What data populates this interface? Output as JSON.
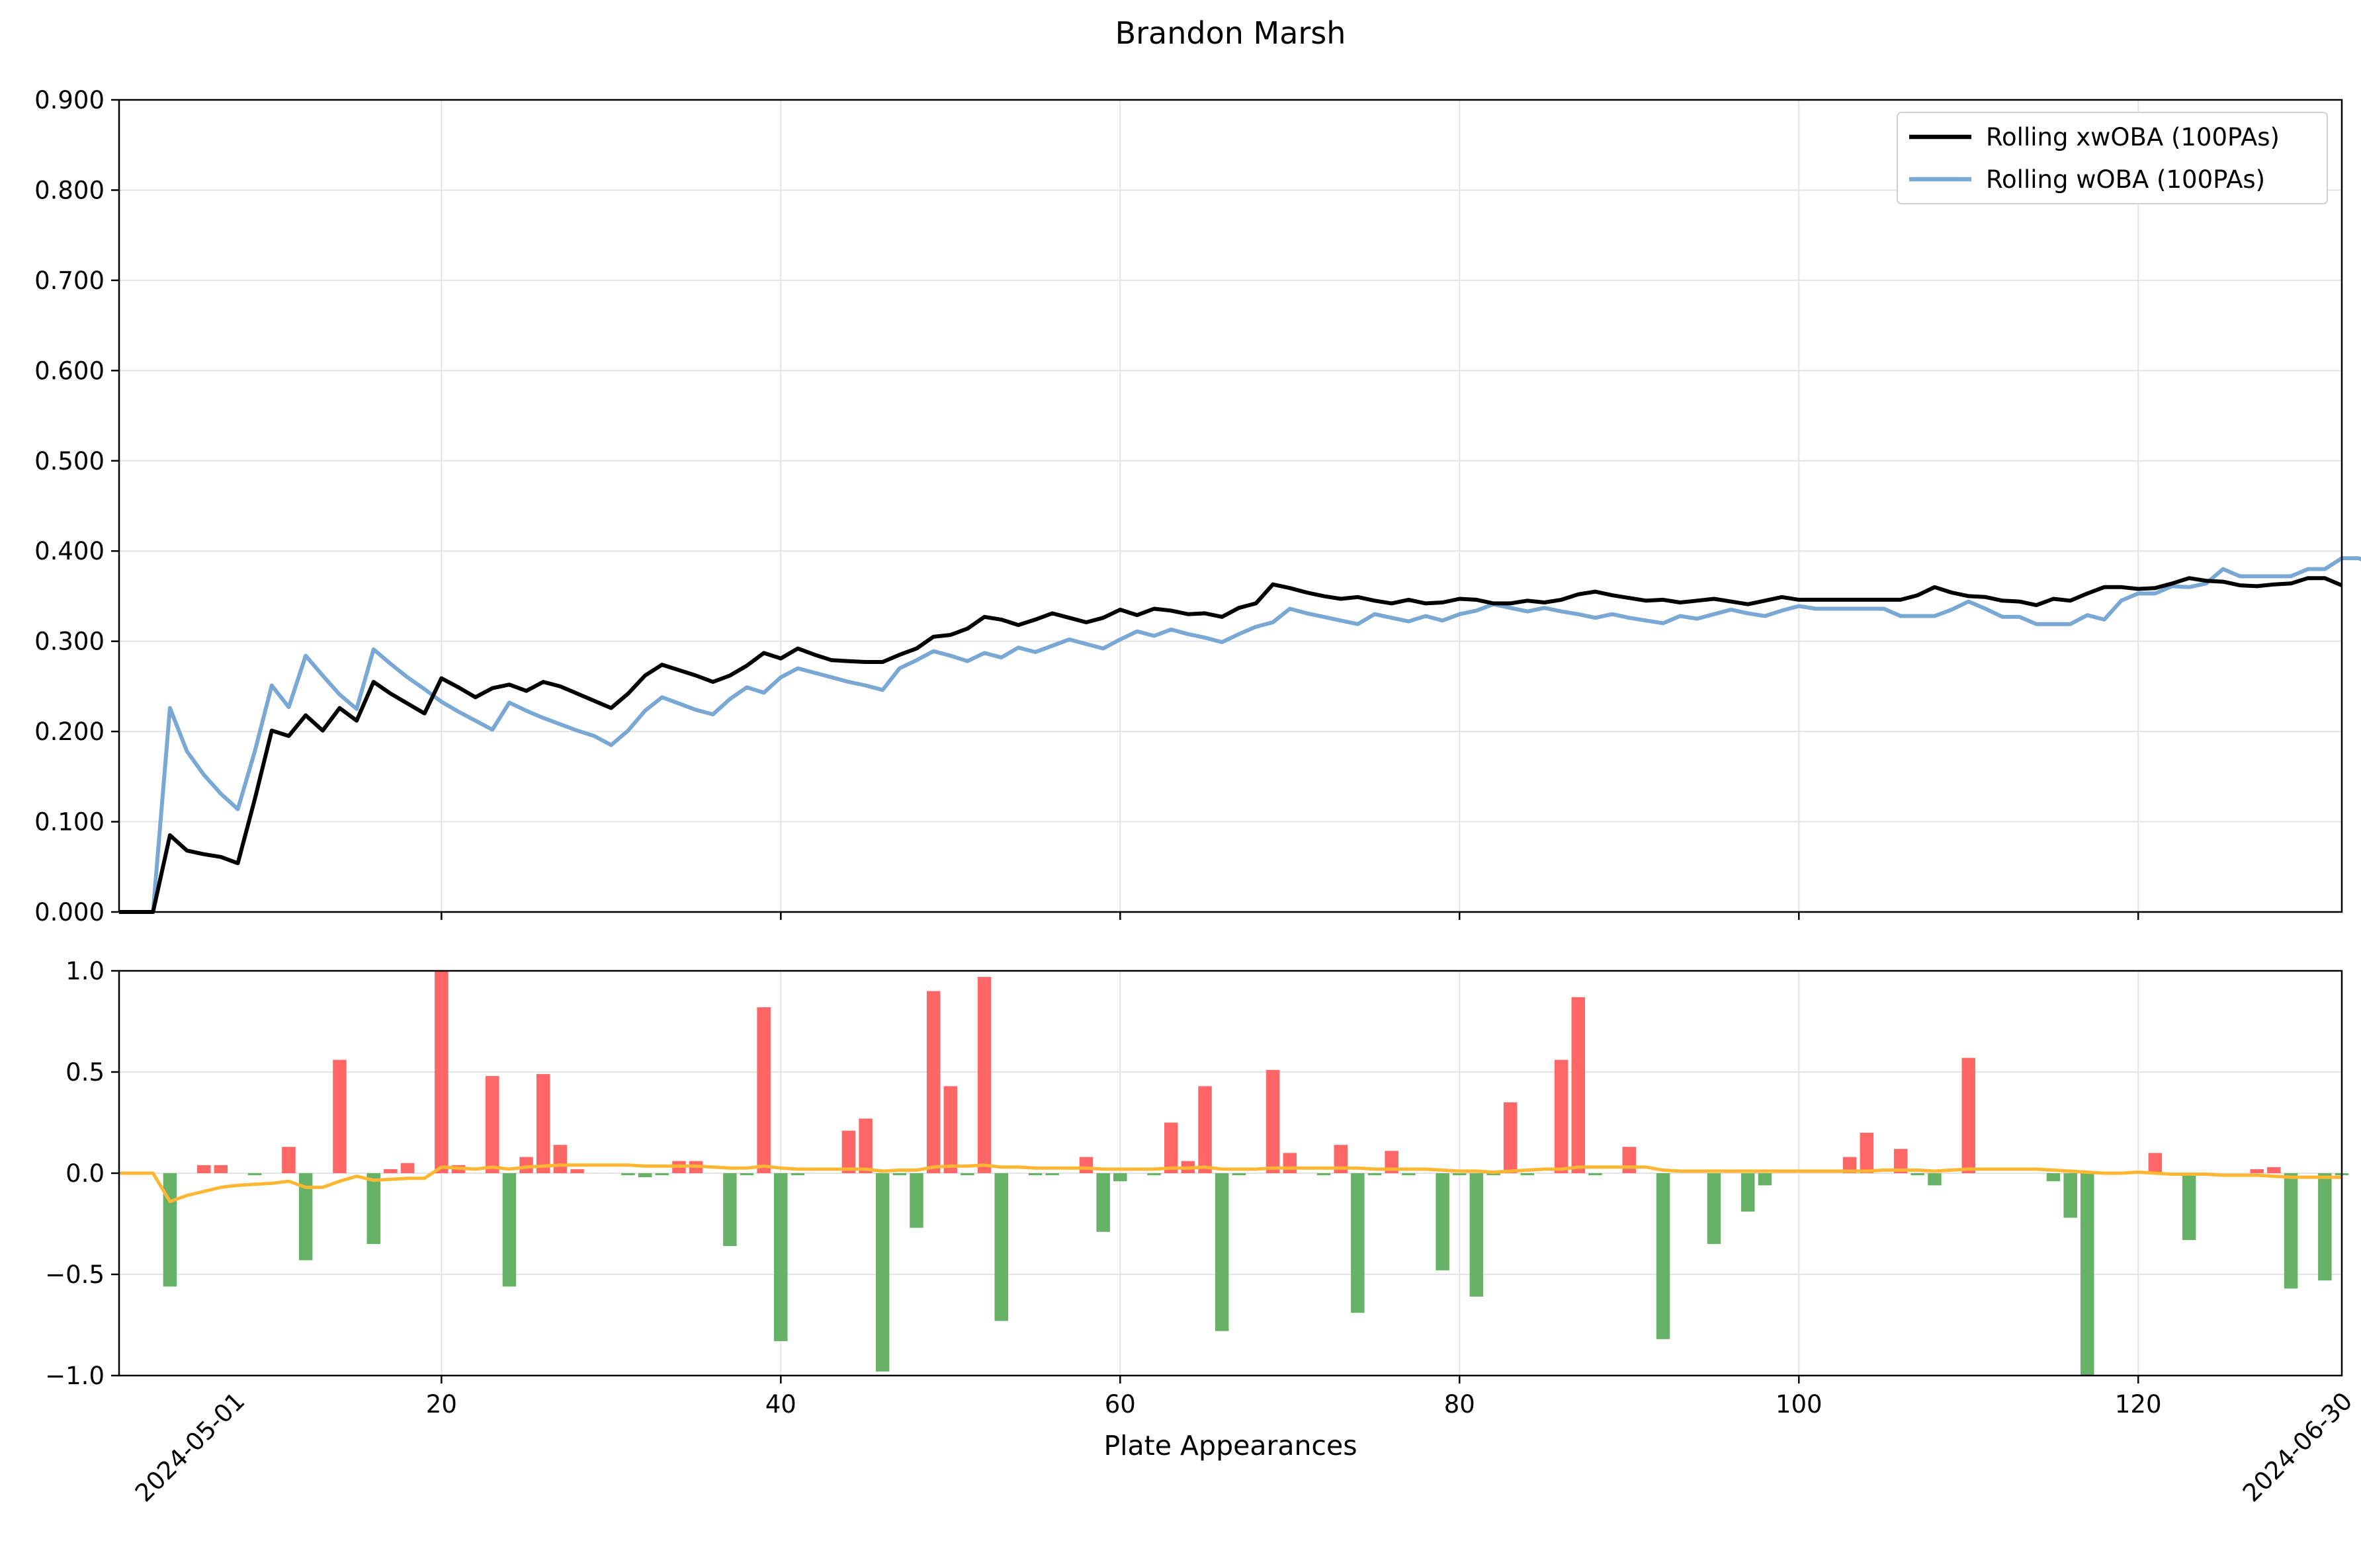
{
  "title": "Brandon Marsh",
  "colors": {
    "xwoba": "#000000",
    "woba": "#7aa8d4",
    "positive_bar": "#ff6666",
    "negative_bar": "#66b266",
    "diff_line": "#ffb733",
    "grid": "#e4e4e4"
  },
  "chart_data": [
    {
      "type": "line",
      "legend_position": "top-right",
      "grid": true,
      "xlim": [
        1,
        132
      ],
      "ylim": [
        0,
        0.9
      ],
      "yticks": [
        "0.000",
        "0.100",
        "0.200",
        "0.300",
        "0.400",
        "0.500",
        "0.600",
        "0.700",
        "0.800",
        "0.900"
      ],
      "x_start": 1,
      "series": [
        {
          "name": "Rolling xwOBA (100PAs)",
          "values": [
            0.0,
            0.0,
            0.0,
            0.085,
            0.068,
            0.064,
            0.061,
            0.054,
            0.125,
            0.201,
            0.195,
            0.218,
            0.201,
            0.226,
            0.212,
            0.255,
            0.242,
            0.231,
            0.22,
            0.259,
            0.249,
            0.238,
            0.248,
            0.252,
            0.245,
            0.255,
            0.25,
            0.242,
            0.234,
            0.226,
            0.242,
            0.262,
            0.274,
            0.268,
            0.262,
            0.255,
            0.262,
            0.273,
            0.287,
            0.281,
            0.292,
            0.285,
            0.279,
            0.278,
            0.277,
            0.277,
            0.285,
            0.292,
            0.305,
            0.307,
            0.314,
            0.327,
            0.324,
            0.318,
            0.324,
            0.331,
            0.326,
            0.321,
            0.326,
            0.335,
            0.329,
            0.336,
            0.334,
            0.33,
            0.331,
            0.327,
            0.337,
            0.342,
            0.363,
            0.359,
            0.354,
            0.35,
            0.347,
            0.349,
            0.345,
            0.342,
            0.346,
            0.342,
            0.343,
            0.347,
            0.346,
            0.342,
            0.342,
            0.345,
            0.343,
            0.346,
            0.352,
            0.355,
            0.351,
            0.348,
            0.345,
            0.346,
            0.343,
            0.345,
            0.347,
            0.344,
            0.341,
            0.345,
            0.349,
            0.346,
            0.346,
            0.346,
            0.346,
            0.346,
            0.346,
            0.346,
            0.351,
            0.36,
            0.354,
            0.35,
            0.349,
            0.345,
            0.344,
            0.34,
            0.347,
            0.345,
            0.353,
            0.36,
            0.36,
            0.358,
            0.359,
            0.364,
            0.37,
            0.367,
            0.366,
            0.362,
            0.361,
            0.363,
            0.364,
            0.37,
            0.37,
            0.362
          ]
        },
        {
          "name": "Rolling wOBA (100PAs)",
          "values": [
            0.0,
            0.0,
            0.0,
            0.226,
            0.178,
            0.152,
            0.131,
            0.114,
            0.178,
            0.251,
            0.227,
            0.284,
            0.262,
            0.241,
            0.225,
            0.291,
            0.275,
            0.26,
            0.247,
            0.233,
            0.222,
            0.212,
            0.202,
            0.232,
            0.223,
            0.215,
            0.208,
            0.201,
            0.195,
            0.185,
            0.201,
            0.223,
            0.238,
            0.231,
            0.224,
            0.219,
            0.236,
            0.249,
            0.243,
            0.26,
            0.27,
            0.265,
            0.26,
            0.255,
            0.251,
            0.246,
            0.27,
            0.279,
            0.289,
            0.284,
            0.278,
            0.287,
            0.282,
            0.293,
            0.288,
            0.295,
            0.302,
            0.297,
            0.292,
            0.302,
            0.311,
            0.306,
            0.313,
            0.308,
            0.304,
            0.299,
            0.308,
            0.316,
            0.321,
            0.336,
            0.331,
            0.327,
            0.323,
            0.319,
            0.33,
            0.326,
            0.322,
            0.328,
            0.323,
            0.33,
            0.334,
            0.341,
            0.337,
            0.333,
            0.337,
            0.333,
            0.33,
            0.326,
            0.33,
            0.326,
            0.323,
            0.32,
            0.328,
            0.325,
            0.33,
            0.335,
            0.331,
            0.328,
            0.334,
            0.339,
            0.336,
            0.336,
            0.336,
            0.336,
            0.336,
            0.328,
            0.328,
            0.328,
            0.335,
            0.344,
            0.336,
            0.327,
            0.327,
            0.319,
            0.319,
            0.319,
            0.329,
            0.324,
            0.345,
            0.353,
            0.353,
            0.361,
            0.36,
            0.364,
            0.38,
            0.372,
            0.372,
            0.372,
            0.372,
            0.38,
            0.38,
            0.392,
            0.392,
            0.384
          ]
        }
      ]
    },
    {
      "type": "bar",
      "grid": true,
      "xlim": [
        1,
        132
      ],
      "ylim": [
        -1.0,
        1.0
      ],
      "yticks": [
        "−1.0",
        "−0.5",
        "0.0",
        "0.5",
        "1.0"
      ],
      "xticks": [
        "20",
        "40",
        "60",
        "80",
        "100",
        "120"
      ],
      "xticks_values": [
        20,
        40,
        60,
        80,
        100,
        120
      ],
      "xlabel": "Plate Appearances",
      "date_labels": [
        "2024-05-01",
        "2024-06-30"
      ],
      "x_start": 1,
      "values": [
        0,
        0,
        0,
        -0.56,
        0,
        0.04,
        0.04,
        0,
        -0.01,
        0,
        0.13,
        -0.43,
        0,
        0.56,
        0,
        -0.35,
        0.02,
        0.05,
        0,
        1.0,
        0.04,
        0,
        0.48,
        -0.56,
        0.08,
        0.49,
        0.14,
        0.02,
        0,
        0,
        -0.01,
        -0.02,
        -0.01,
        0.06,
        0.06,
        0,
        -0.36,
        -0.01,
        0.82,
        -0.83,
        -0.01,
        0,
        0,
        0.21,
        0.27,
        -0.98,
        -0.01,
        -0.27,
        0.9,
        0.43,
        -0.01,
        0.97,
        -0.73,
        0,
        -0.01,
        -0.01,
        0,
        0.08,
        -0.29,
        -0.04,
        0,
        -0.01,
        0.25,
        0.06,
        0.43,
        -0.78,
        -0.01,
        0,
        0.51,
        0.1,
        0,
        -0.01,
        0.14,
        -0.69,
        -0.01,
        0.11,
        -0.01,
        0,
        -0.48,
        -0.01,
        -0.61,
        -0.01,
        0.35,
        -0.01,
        0,
        0.56,
        0.87,
        -0.01,
        0,
        0.13,
        0,
        -0.82,
        0,
        0,
        -0.35,
        0,
        -0.19,
        -0.06,
        0,
        0,
        0,
        0,
        0.08,
        0.2,
        0,
        0.12,
        -0.01,
        -0.06,
        0,
        0.57,
        0,
        0,
        0,
        0,
        -0.04,
        -0.22,
        -1.0,
        0,
        0,
        0,
        0.1,
        0,
        -0.33,
        0,
        0,
        0,
        0.02,
        0.03,
        -0.57,
        0,
        -0.53,
        -0.01
      ],
      "line_values": [
        0,
        0,
        0,
        -0.14,
        -0.11,
        -0.09,
        -0.07,
        -0.06,
        -0.055,
        -0.05,
        -0.04,
        -0.07,
        -0.07,
        -0.04,
        -0.015,
        -0.035,
        -0.03,
        -0.025,
        -0.025,
        0.03,
        0.025,
        0.02,
        0.03,
        0.02,
        0.03,
        0.035,
        0.04,
        0.04,
        0.04,
        0.04,
        0.04,
        0.035,
        0.035,
        0.035,
        0.035,
        0.03,
        0.025,
        0.025,
        0.035,
        0.025,
        0.02,
        0.02,
        0.02,
        0.02,
        0.02,
        0.01,
        0.015,
        0.015,
        0.03,
        0.035,
        0.035,
        0.04,
        0.03,
        0.03,
        0.025,
        0.025,
        0.025,
        0.025,
        0.02,
        0.02,
        0.02,
        0.02,
        0.025,
        0.025,
        0.03,
        0.02,
        0.02,
        0.02,
        0.025,
        0.025,
        0.025,
        0.025,
        0.025,
        0.025,
        0.02,
        0.02,
        0.02,
        0.02,
        0.015,
        0.01,
        0.01,
        0.005,
        0.01,
        0.015,
        0.02,
        0.02,
        0.03,
        0.03,
        0.03,
        0.03,
        0.03,
        0.015,
        0.01,
        0.01,
        0.01,
        0.01,
        0.01,
        0.01,
        0.01,
        0.01,
        0.01,
        0.01,
        0.01,
        0.01,
        0.015,
        0.015,
        0.015,
        0.01,
        0.015,
        0.02,
        0.02,
        0.02,
        0.02,
        0.02,
        0.015,
        0.01,
        0.005,
        0,
        0,
        0.005,
        0,
        -0.005,
        -0.005,
        -0.005,
        -0.01,
        -0.01,
        -0.01,
        -0.015,
        -0.02,
        -0.02,
        -0.02,
        -0.02
      ]
    }
  ]
}
